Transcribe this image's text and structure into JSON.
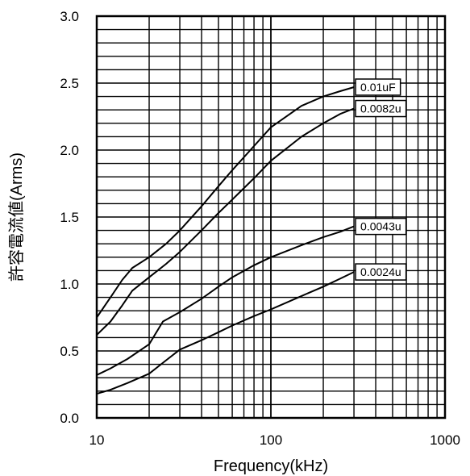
{
  "chart_data": {
    "type": "line",
    "title": "",
    "xlabel": "Frequency(kHz)",
    "ylabel": "許容電流値(Arms)",
    "x_scale": "log",
    "xlim": [
      10,
      1000
    ],
    "ylim": [
      0.0,
      3.0
    ],
    "grid": true,
    "x_ticks": [
      {
        "value": 10,
        "label": "10"
      },
      {
        "value": 100,
        "label": "100"
      },
      {
        "value": 1000,
        "label": "1000"
      }
    ],
    "y_ticks": [
      {
        "value": 0.0,
        "label": "0.0"
      },
      {
        "value": 0.5,
        "label": "0.5"
      },
      {
        "value": 1.0,
        "label": "1.0"
      },
      {
        "value": 1.5,
        "label": "1.5"
      },
      {
        "value": 2.0,
        "label": "2.0"
      },
      {
        "value": 2.5,
        "label": "2.5"
      },
      {
        "value": 3.0,
        "label": "3.0"
      }
    ],
    "series": [
      {
        "name": "0.01uF",
        "x": [
          10,
          12,
          14,
          16,
          20,
          25,
          30,
          40,
          50,
          60,
          80,
          100,
          150,
          200,
          250,
          300
        ],
        "y": [
          0.75,
          0.9,
          1.03,
          1.12,
          1.2,
          1.3,
          1.4,
          1.58,
          1.73,
          1.85,
          2.03,
          2.17,
          2.33,
          2.4,
          2.44,
          2.47
        ]
      },
      {
        "name": "0.0082u",
        "x": [
          10,
          12,
          14,
          16,
          20,
          25,
          30,
          40,
          50,
          60,
          80,
          100,
          150,
          200,
          250,
          300
        ],
        "y": [
          0.62,
          0.72,
          0.84,
          0.95,
          1.05,
          1.15,
          1.24,
          1.4,
          1.53,
          1.63,
          1.79,
          1.92,
          2.1,
          2.2,
          2.27,
          2.31
        ]
      },
      {
        "name": "0.0043u",
        "x": [
          10,
          12,
          15,
          20,
          24,
          30,
          40,
          50,
          60,
          80,
          100,
          150,
          200,
          250,
          300
        ],
        "y": [
          0.32,
          0.37,
          0.44,
          0.55,
          0.72,
          0.79,
          0.89,
          0.98,
          1.05,
          1.14,
          1.2,
          1.29,
          1.35,
          1.39,
          1.43
        ]
      },
      {
        "name": "0.0024u",
        "x": [
          10,
          12,
          15,
          20,
          25,
          30,
          40,
          50,
          60,
          80,
          100,
          150,
          200,
          250,
          300
        ],
        "y": [
          0.18,
          0.21,
          0.26,
          0.33,
          0.43,
          0.51,
          0.58,
          0.64,
          0.69,
          0.76,
          0.81,
          0.91,
          0.98,
          1.04,
          1.09
        ]
      }
    ]
  }
}
